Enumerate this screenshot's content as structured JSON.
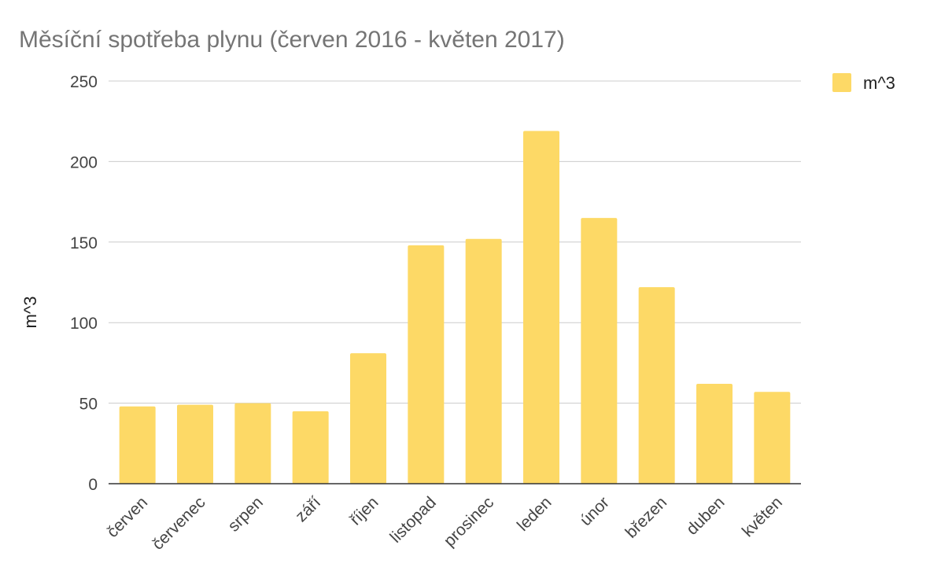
{
  "chart_data": {
    "type": "bar",
    "title": "Měsíční spotřeba plynu (červen 2016 - květen 2017)",
    "xlabel": "",
    "ylabel": "m^3",
    "categories": [
      "červen",
      "červenec",
      "srpen",
      "září",
      "říjen",
      "listopad",
      "prosinec",
      "leden",
      "únor",
      "březen",
      "duben",
      "květen"
    ],
    "series": [
      {
        "name": "m^3",
        "color": "#fdd966",
        "values": [
          48,
          49,
          50,
          45,
          81,
          148,
          152,
          219,
          165,
          122,
          62,
          57
        ]
      }
    ],
    "ylim": [
      0,
      250
    ],
    "yticks": [
      0,
      50,
      100,
      150,
      200,
      250
    ],
    "grid": true,
    "legend_position": "top-right"
  }
}
